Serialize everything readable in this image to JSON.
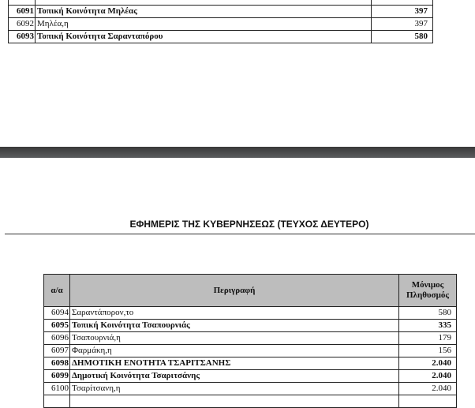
{
  "page_top": {
    "rows": [
      {
        "id": "",
        "name": "",
        "value": "",
        "bold": false
      },
      {
        "id": "6091",
        "name": "Τοπική Κοινότητα Μηλέας",
        "value": "397",
        "bold": true
      },
      {
        "id": "6092",
        "name": "Μηλέα,η",
        "value": "397",
        "bold": false
      },
      {
        "id": "6093",
        "name": "Τοπική Κοινότητα Σαρανταπόρου",
        "value": "580",
        "bold": true
      }
    ]
  },
  "page_bottom": {
    "running_header": "ΕΦΗΜΕΡΙΣ ΤΗΣ ΚΥΒΕΡΝΗΣΕΩΣ (ΤΕΥΧΟΣ ΔΕΥΤΕΡΟ)",
    "columns": {
      "id": "α/α",
      "name": "Περιγραφή",
      "value_line1": "Μόνιμος",
      "value_line2": "Πληθυσμός"
    },
    "rows": [
      {
        "id": "6094",
        "name": "Σαραντάπορον,το",
        "value": "580",
        "bold": false
      },
      {
        "id": "6095",
        "name": "Τοπική Κοινότητα Τσαπουρνιάς",
        "value": "335",
        "bold": true
      },
      {
        "id": "6096",
        "name": "Τσαπουρνιά,η",
        "value": "179",
        "bold": false
      },
      {
        "id": "6097",
        "name": "Φαρμάκη,η",
        "value": "156",
        "bold": false
      },
      {
        "id": "6098",
        "name": "ΔΗΜΟΤΙΚΗ ΕΝΟΤΗΤΑ ΤΣΑΡΙΤΣΑΝΗΣ",
        "value": "2.040",
        "bold": true
      },
      {
        "id": "6099",
        "name": "Δημοτική Κοινότητα Τσαριτσάνης",
        "value": "2.040",
        "bold": true
      },
      {
        "id": "6100",
        "name": "Τσαρίτσανη,η",
        "value": "2.040",
        "bold": false
      },
      {
        "id": "",
        "name": "",
        "value": "",
        "bold": false
      }
    ]
  }
}
